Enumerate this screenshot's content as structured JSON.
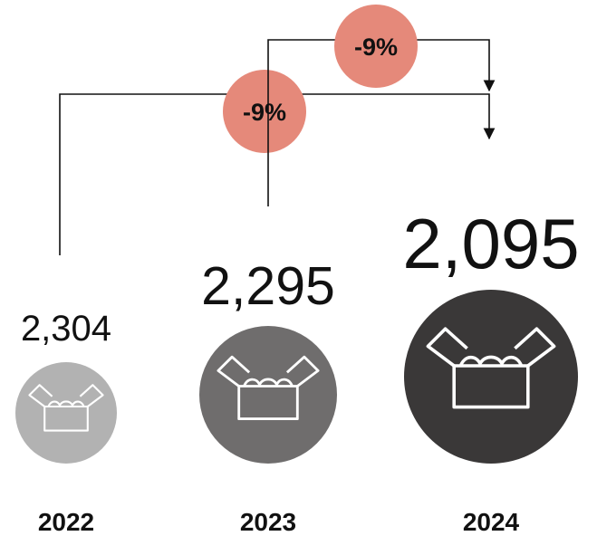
{
  "chart_data": {
    "type": "bar",
    "categories": [
      "2022",
      "2023",
      "2024"
    ],
    "values": [
      2304,
      2295,
      2095
    ],
    "value_labels": [
      "2,304",
      "2,295",
      "2,095"
    ],
    "changes": [
      {
        "from": "2022",
        "to": "2024",
        "label": "-9%"
      },
      {
        "from": "2023",
        "to": "2024",
        "label": "-9%"
      }
    ],
    "colors": {
      "circles": [
        "#b2b2b2",
        "#6f6d6d",
        "#3a3838"
      ],
      "change_badge": "#e5897a",
      "connector": "#111111"
    },
    "icon": "open-box-icon"
  }
}
